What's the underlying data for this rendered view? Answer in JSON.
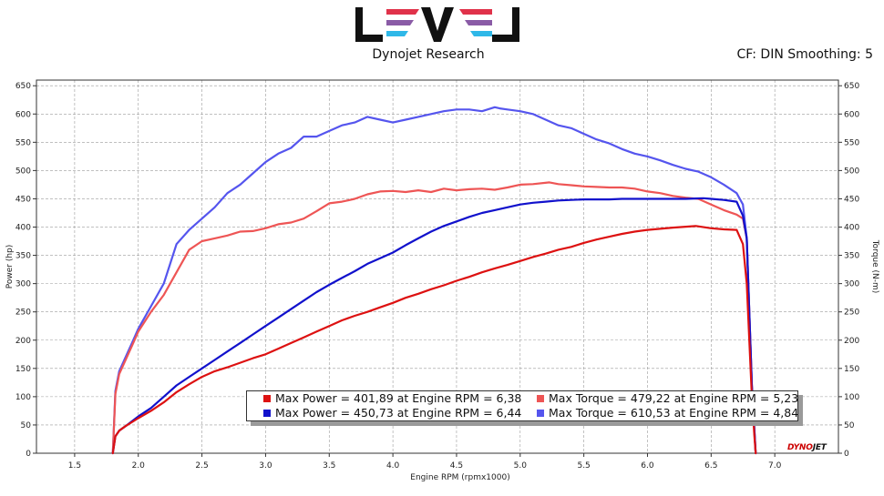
{
  "header": {
    "title": "Dynojet Research",
    "cf_text": "CF: DIN Smoothing: 5"
  },
  "logo": {
    "text": "LEVEL",
    "colors": {
      "dark": "#111111",
      "red": "#e0324a",
      "purple": "#8a5ba6",
      "cyan": "#2fb8e8"
    }
  },
  "badge": {
    "prefix": "DYNO",
    "suffix": "JET"
  },
  "legend": {
    "row1_left": "Max Power = 401,89 at Engine RPM = 6,38",
    "row1_right": "Max Torque = 479,22 at Engine RPM = 5,23",
    "row2_left": "Max Power = 450,73 at Engine RPM = 6,44",
    "row2_right": "Max Torque = 610,53 at Engine RPM = 4,84"
  },
  "chart_data": {
    "type": "line",
    "title": "",
    "xlabel": "Engine RPM (rpmx1000)",
    "ylabel": "Power (hp)",
    "y2label": "Torque (N-m)",
    "xlim": [
      1.2,
      7.5
    ],
    "ylim": [
      0,
      660
    ],
    "y2lim": [
      0,
      660
    ],
    "grid": true,
    "x_ticks": [
      1.5,
      2.0,
      2.5,
      3.0,
      3.5,
      4.0,
      4.5,
      5.0,
      5.5,
      6.0,
      6.5,
      7.0
    ],
    "y_ticks": [
      0,
      50,
      100,
      150,
      200,
      250,
      300,
      350,
      400,
      450,
      500,
      550,
      600,
      650
    ],
    "series": [
      {
        "name": "Max Torque = 610,53 at Engine RPM = 4,84",
        "color": "#5555ee",
        "x": [
          1.8,
          1.82,
          1.85,
          1.9,
          1.95,
          2.0,
          2.1,
          2.2,
          2.3,
          2.4,
          2.5,
          2.6,
          2.7,
          2.8,
          2.9,
          3.0,
          3.1,
          3.2,
          3.3,
          3.4,
          3.5,
          3.6,
          3.7,
          3.8,
          3.9,
          4.0,
          4.1,
          4.2,
          4.3,
          4.4,
          4.5,
          4.6,
          4.7,
          4.8,
          4.84,
          4.9,
          5.0,
          5.1,
          5.2,
          5.3,
          5.4,
          5.5,
          5.6,
          5.7,
          5.8,
          5.9,
          6.0,
          6.1,
          6.2,
          6.3,
          6.4,
          6.5,
          6.6,
          6.7,
          6.75,
          6.78,
          6.8,
          6.82,
          6.84,
          6.85
        ],
        "values": [
          0,
          110,
          145,
          170,
          195,
          220,
          260,
          300,
          370,
          395,
          415,
          435,
          460,
          475,
          495,
          515,
          530,
          540,
          560,
          560,
          570,
          580,
          585,
          595,
          590,
          585,
          590,
          595,
          600,
          605,
          608,
          608,
          605,
          612,
          610,
          608,
          605,
          600,
          590,
          580,
          575,
          565,
          555,
          548,
          538,
          530,
          525,
          518,
          510,
          503,
          498,
          488,
          475,
          460,
          440,
          380,
          250,
          120,
          40,
          0
        ]
      },
      {
        "name": "Max Torque = 479,22 at Engine RPM = 5,23",
        "color": "#ee5555",
        "x": [
          1.8,
          1.82,
          1.85,
          1.9,
          1.95,
          2.0,
          2.1,
          2.2,
          2.3,
          2.4,
          2.5,
          2.6,
          2.7,
          2.8,
          2.9,
          3.0,
          3.1,
          3.2,
          3.3,
          3.4,
          3.5,
          3.6,
          3.7,
          3.8,
          3.9,
          4.0,
          4.1,
          4.2,
          4.3,
          4.4,
          4.5,
          4.6,
          4.7,
          4.8,
          4.9,
          5.0,
          5.1,
          5.23,
          5.3,
          5.4,
          5.5,
          5.6,
          5.7,
          5.8,
          5.9,
          6.0,
          6.1,
          6.2,
          6.3,
          6.4,
          6.5,
          6.6,
          6.7,
          6.75,
          6.78,
          6.8,
          6.82,
          6.84,
          6.85
        ],
        "values": [
          0,
          105,
          140,
          165,
          190,
          215,
          250,
          280,
          320,
          360,
          375,
          380,
          385,
          392,
          393,
          398,
          405,
          408,
          415,
          428,
          442,
          445,
          450,
          458,
          463,
          464,
          462,
          465,
          462,
          468,
          465,
          467,
          468,
          466,
          470,
          475,
          476,
          479,
          476,
          474,
          472,
          471,
          470,
          470,
          468,
          463,
          460,
          455,
          452,
          450,
          440,
          430,
          422,
          415,
          380,
          250,
          120,
          40,
          0
        ]
      },
      {
        "name": "Max Power = 450,73 at Engine RPM = 6,44",
        "color": "#1111cc",
        "x": [
          1.8,
          1.82,
          1.85,
          1.9,
          2.0,
          2.1,
          2.2,
          2.3,
          2.4,
          2.5,
          2.6,
          2.7,
          2.8,
          2.9,
          3.0,
          3.1,
          3.2,
          3.3,
          3.4,
          3.5,
          3.6,
          3.7,
          3.8,
          3.9,
          4.0,
          4.1,
          4.2,
          4.3,
          4.4,
          4.5,
          4.6,
          4.7,
          4.8,
          4.9,
          5.0,
          5.1,
          5.2,
          5.3,
          5.4,
          5.5,
          5.6,
          5.7,
          5.8,
          5.9,
          6.0,
          6.1,
          6.2,
          6.3,
          6.44,
          6.5,
          6.6,
          6.7,
          6.75,
          6.78,
          6.8,
          6.82,
          6.84,
          6.85
        ],
        "values": [
          0,
          30,
          40,
          48,
          65,
          80,
          100,
          120,
          135,
          150,
          165,
          180,
          195,
          210,
          225,
          240,
          255,
          270,
          285,
          298,
          310,
          322,
          335,
          345,
          355,
          368,
          380,
          392,
          402,
          410,
          418,
          425,
          430,
          435,
          440,
          443,
          445,
          447,
          448,
          449,
          449,
          449,
          450,
          450,
          450,
          450,
          450,
          450,
          451,
          450,
          448,
          445,
          420,
          380,
          250,
          120,
          40,
          0
        ]
      },
      {
        "name": "Max Power = 401,89 at Engine RPM = 6,38",
        "color": "#dd1111",
        "x": [
          1.8,
          1.82,
          1.85,
          1.9,
          2.0,
          2.1,
          2.2,
          2.3,
          2.4,
          2.5,
          2.6,
          2.7,
          2.8,
          2.9,
          3.0,
          3.1,
          3.2,
          3.3,
          3.4,
          3.5,
          3.6,
          3.7,
          3.8,
          3.9,
          4.0,
          4.1,
          4.2,
          4.3,
          4.4,
          4.5,
          4.6,
          4.7,
          4.8,
          4.9,
          5.0,
          5.1,
          5.2,
          5.3,
          5.4,
          5.5,
          5.6,
          5.7,
          5.8,
          5.9,
          6.0,
          6.1,
          6.2,
          6.38,
          6.5,
          6.6,
          6.7,
          6.75,
          6.78,
          6.8,
          6.82,
          6.84,
          6.85
        ],
        "values": [
          0,
          30,
          40,
          48,
          62,
          75,
          90,
          108,
          122,
          135,
          145,
          152,
          160,
          168,
          175,
          185,
          195,
          205,
          215,
          225,
          235,
          243,
          250,
          258,
          266,
          275,
          282,
          290,
          297,
          305,
          312,
          320,
          327,
          333,
          340,
          347,
          353,
          360,
          365,
          372,
          378,
          383,
          388,
          392,
          395,
          397,
          399,
          402,
          398,
          396,
          395,
          370,
          300,
          200,
          100,
          30,
          0
        ]
      }
    ]
  }
}
